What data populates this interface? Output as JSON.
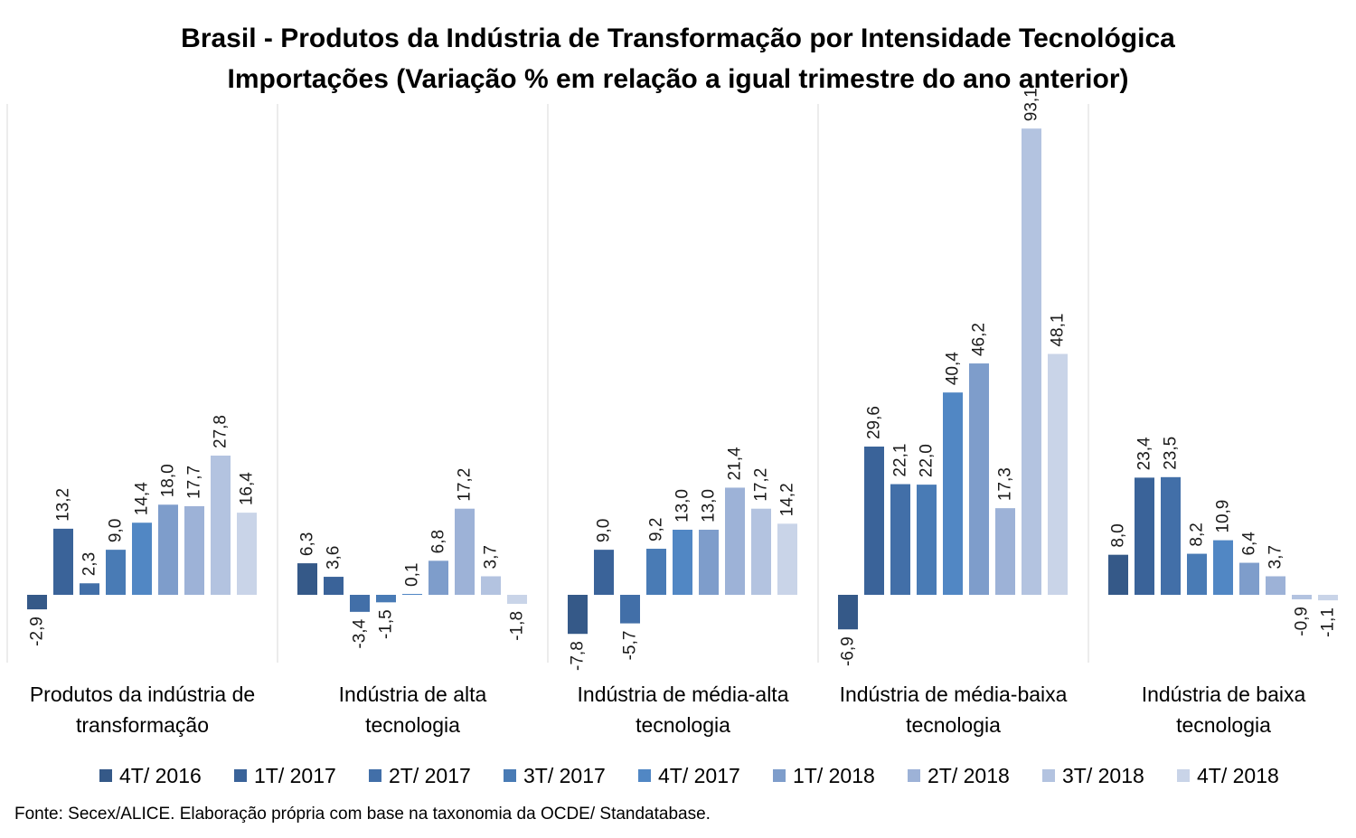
{
  "chart_data": {
    "type": "bar",
    "title": "Brasil - Produtos da Indústria de Transformação por Intensidade Tecnológica",
    "subtitle": "Importações (Variação % em relação a igual trimestre do ano anterior)",
    "categories": [
      [
        "Produtos da indústria de",
        "transformação"
      ],
      [
        "Indústria de alta",
        "tecnologia"
      ],
      [
        "Indústria de média-alta",
        "tecnologia"
      ],
      [
        "Indústria de média-baixa",
        "tecnologia"
      ],
      [
        "Indústria de baixa",
        "tecnologia"
      ]
    ],
    "series": [
      {
        "name": "4T/ 2016",
        "color": "#355988",
        "values": [
          -2.9,
          6.3,
          -7.8,
          -6.9,
          8.0
        ],
        "labels": [
          "-2,9",
          "6,3",
          "-7,8",
          "-6,9",
          "8,0"
        ]
      },
      {
        "name": "1T/ 2017",
        "color": "#3a6399",
        "values": [
          13.2,
          3.6,
          9.0,
          29.6,
          23.4
        ],
        "labels": [
          "13,2",
          "3,6",
          "9,0",
          "29,6",
          "23,4"
        ]
      },
      {
        "name": "2T/ 2017",
        "color": "#426fa8",
        "values": [
          2.3,
          -3.4,
          -5.7,
          22.1,
          23.5
        ],
        "labels": [
          "2,3",
          "-3,4",
          "-5,7",
          "22,1",
          "23,5"
        ]
      },
      {
        "name": "3T/ 2017",
        "color": "#497bb5",
        "values": [
          9.0,
          -1.5,
          9.2,
          22.0,
          8.2
        ],
        "labels": [
          "9,0",
          "-1,5",
          "9,2",
          "22,0",
          "8,2"
        ]
      },
      {
        "name": "4T/ 2017",
        "color": "#5187c4",
        "values": [
          14.4,
          0.1,
          13.0,
          40.4,
          10.9
        ],
        "labels": [
          "14,4",
          "0,1",
          "13,0",
          "40,4",
          "10,9"
        ]
      },
      {
        "name": "1T/ 2018",
        "color": "#7e9dcb",
        "values": [
          18.0,
          6.8,
          13.0,
          46.2,
          6.4
        ],
        "labels": [
          "18,0",
          "6,8",
          "13,0",
          "46,2",
          "6,4"
        ]
      },
      {
        "name": "2T/ 2018",
        "color": "#9db2d7",
        "values": [
          17.7,
          17.2,
          21.4,
          17.3,
          3.7
        ],
        "labels": [
          "17,7",
          "17,2",
          "21,4",
          "17,3",
          "3,7"
        ]
      },
      {
        "name": "3T/ 2018",
        "color": "#b3c3e0",
        "values": [
          27.8,
          3.7,
          17.2,
          93.1,
          -0.9
        ],
        "labels": [
          "27,8",
          "3,7",
          "17,2",
          "93,1",
          "-0,9"
        ]
      },
      {
        "name": "4T/ 2018",
        "color": "#c9d4e8",
        "values": [
          16.4,
          -1.8,
          14.2,
          48.1,
          -1.1
        ],
        "labels": [
          "16,4",
          "-1,8",
          "14,2",
          "48,1",
          "-1,1"
        ]
      }
    ],
    "ylim": [
      -14,
      100
    ],
    "grid": false,
    "legend": "bottom",
    "source": "Fonte: Secex/ALICE. Elaboração própria com base na taxonomia da OCDE/ Standatabase."
  }
}
